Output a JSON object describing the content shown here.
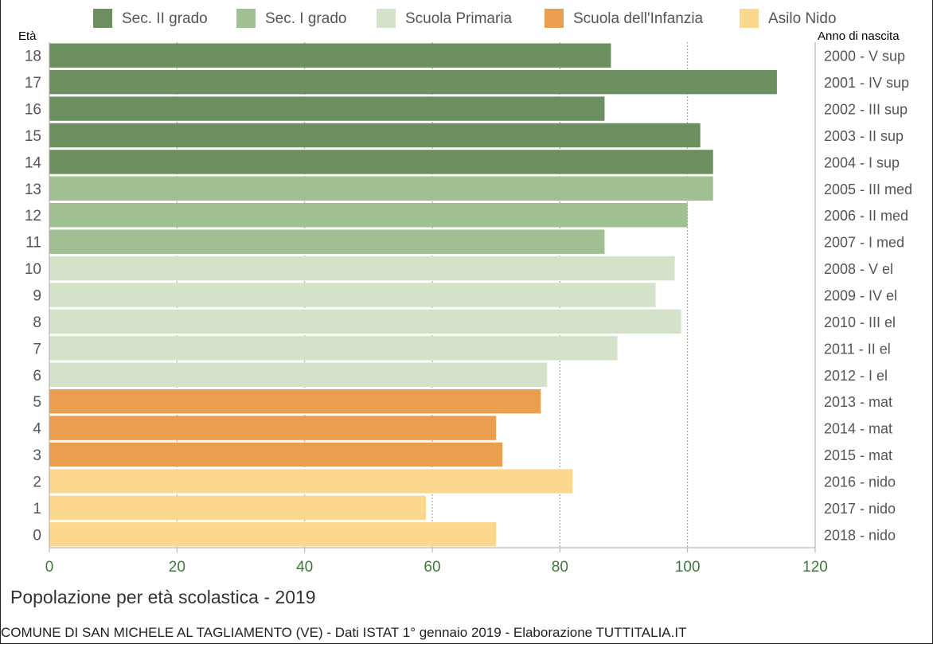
{
  "chart_data": {
    "type": "bar",
    "orientation": "horizontal",
    "title": "Popolazione per età scolastica - 2019",
    "subtitle": "COMUNE DI SAN MICHELE AL TAGLIAMENTO (VE) - Dati ISTAT 1° gennaio 2019 - Elaborazione TUTTITALIA.IT",
    "ylabel": "Età",
    "ylabel_right": "Anno di nascita",
    "xlim": [
      0,
      120
    ],
    "xticks": [
      0,
      20,
      40,
      60,
      80,
      100,
      120
    ],
    "grid": true,
    "legend_position": "top",
    "categories_legend": [
      {
        "name": "Sec. II grado",
        "color": "#6b8f5e"
      },
      {
        "name": "Sec. I grado",
        "color": "#a0bf93"
      },
      {
        "name": "Scuola Primaria",
        "color": "#d4e2c9"
      },
      {
        "name": "Scuola dell'Infanzia",
        "color": "#e99e50"
      },
      {
        "name": "Asilo Nido",
        "color": "#fcd88e"
      }
    ],
    "bars": [
      {
        "age": "18",
        "birth": "2000 - V sup",
        "value": 88,
        "group": 0
      },
      {
        "age": "17",
        "birth": "2001 - IV sup",
        "value": 114,
        "group": 0
      },
      {
        "age": "16",
        "birth": "2002 - III sup",
        "value": 87,
        "group": 0
      },
      {
        "age": "15",
        "birth": "2003 - II sup",
        "value": 102,
        "group": 0
      },
      {
        "age": "14",
        "birth": "2004 - I sup",
        "value": 104,
        "group": 0
      },
      {
        "age": "13",
        "birth": "2005 - III med",
        "value": 104,
        "group": 1
      },
      {
        "age": "12",
        "birth": "2006 - II med",
        "value": 100,
        "group": 1
      },
      {
        "age": "11",
        "birth": "2007 - I med",
        "value": 87,
        "group": 1
      },
      {
        "age": "10",
        "birth": "2008 - V el",
        "value": 98,
        "group": 2
      },
      {
        "age": "9",
        "birth": "2009 - IV el",
        "value": 95,
        "group": 2
      },
      {
        "age": "8",
        "birth": "2010 - III el",
        "value": 99,
        "group": 2
      },
      {
        "age": "7",
        "birth": "2011 - II el",
        "value": 89,
        "group": 2
      },
      {
        "age": "6",
        "birth": "2012 - I el",
        "value": 78,
        "group": 2
      },
      {
        "age": "5",
        "birth": "2013 - mat",
        "value": 77,
        "group": 3
      },
      {
        "age": "4",
        "birth": "2014 - mat",
        "value": 70,
        "group": 3
      },
      {
        "age": "3",
        "birth": "2015 - mat",
        "value": 71,
        "group": 3
      },
      {
        "age": "2",
        "birth": "2016 - nido",
        "value": 82,
        "group": 4
      },
      {
        "age": "1",
        "birth": "2017 - nido",
        "value": 59,
        "group": 4
      },
      {
        "age": "0",
        "birth": "2018 - nido",
        "value": 70,
        "group": 4
      }
    ]
  }
}
